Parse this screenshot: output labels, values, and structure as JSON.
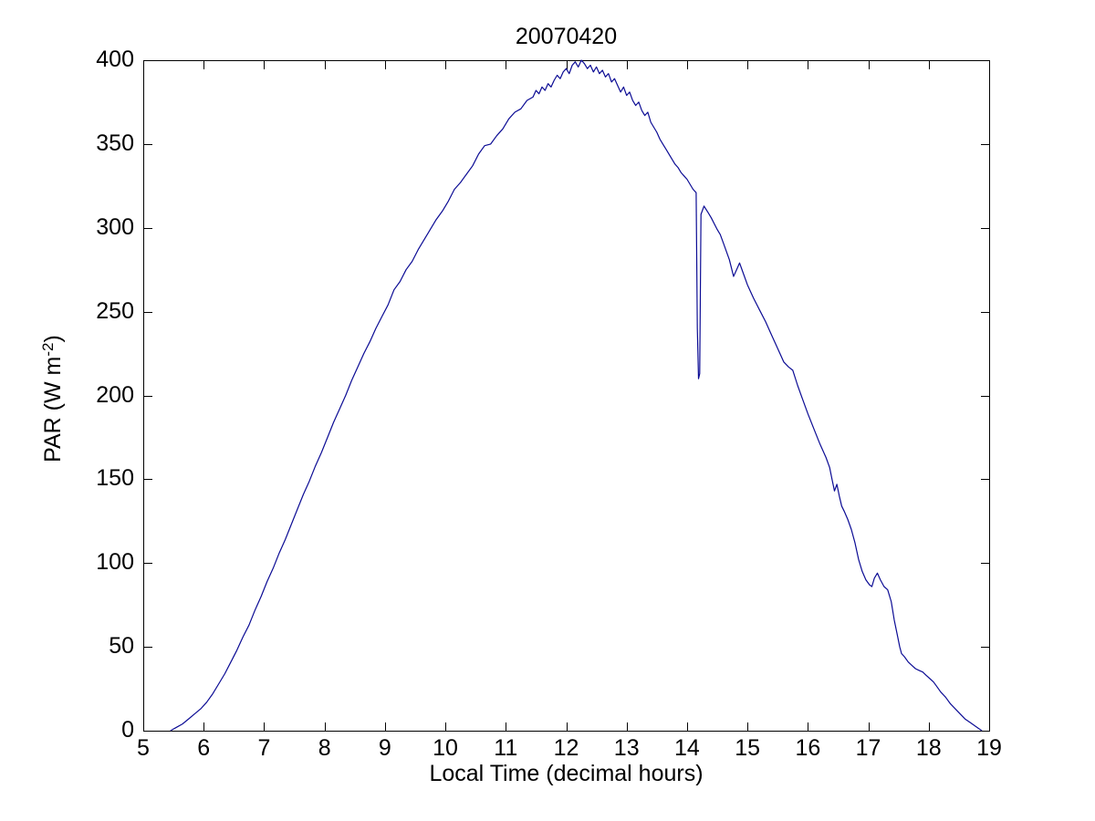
{
  "chart_data": {
    "type": "line",
    "title": "20070420",
    "xlabel": "Local Time (decimal hours)",
    "ylabel": {
      "prefix": "PAR (W m",
      "sup": "-2",
      "suffix": ")"
    },
    "xlim": [
      5,
      19
    ],
    "ylim": [
      0,
      400
    ],
    "xticks": [
      5,
      6,
      7,
      8,
      9,
      10,
      11,
      12,
      13,
      14,
      15,
      16,
      17,
      18,
      19
    ],
    "yticks": [
      0,
      50,
      100,
      150,
      200,
      250,
      300,
      350,
      400
    ],
    "grid": false,
    "legend": null,
    "line_color": "#0b0b94",
    "axis_color": "#000000",
    "background_color": "#ffffff",
    "series": [
      {
        "name": "PAR",
        "x": [
          5.45,
          5.55,
          5.65,
          5.75,
          5.85,
          5.95,
          6.05,
          6.15,
          6.25,
          6.35,
          6.45,
          6.55,
          6.65,
          6.75,
          6.85,
          6.95,
          7.05,
          7.15,
          7.25,
          7.35,
          7.45,
          7.55,
          7.65,
          7.75,
          7.85,
          7.95,
          8.05,
          8.15,
          8.25,
          8.35,
          8.45,
          8.55,
          8.65,
          8.75,
          8.85,
          8.95,
          9.05,
          9.15,
          9.25,
          9.35,
          9.45,
          9.55,
          9.65,
          9.75,
          9.85,
          9.95,
          10.05,
          10.15,
          10.25,
          10.35,
          10.45,
          10.55,
          10.65,
          10.75,
          10.85,
          10.95,
          11.05,
          11.15,
          11.25,
          11.35,
          11.45,
          11.5,
          11.55,
          11.6,
          11.65,
          11.7,
          11.75,
          11.8,
          11.85,
          11.9,
          11.95,
          12.0,
          12.05,
          12.1,
          12.15,
          12.2,
          12.25,
          12.3,
          12.35,
          12.4,
          12.45,
          12.5,
          12.55,
          12.6,
          12.65,
          12.7,
          12.75,
          12.8,
          12.85,
          12.9,
          12.95,
          13.0,
          13.05,
          13.1,
          13.15,
          13.2,
          13.25,
          13.3,
          13.35,
          13.4,
          13.45,
          13.5,
          13.55,
          13.6,
          13.65,
          13.7,
          13.75,
          13.8,
          13.85,
          13.9,
          13.95,
          14.0,
          14.05,
          14.1,
          14.15,
          14.17,
          14.19,
          14.21,
          14.23,
          14.28,
          14.35,
          14.4,
          14.5,
          14.55,
          14.6,
          14.7,
          14.77,
          14.82,
          14.87,
          14.92,
          15.0,
          15.1,
          15.2,
          15.3,
          15.4,
          15.5,
          15.6,
          15.68,
          15.75,
          15.83,
          15.9,
          16.0,
          16.1,
          16.2,
          16.3,
          16.36,
          16.4,
          16.44,
          16.48,
          16.52,
          16.56,
          16.6,
          16.66,
          16.72,
          16.78,
          16.84,
          16.9,
          16.96,
          17.02,
          17.06,
          17.1,
          17.15,
          17.2,
          17.26,
          17.32,
          17.38,
          17.43,
          17.48,
          17.52,
          17.55,
          17.6,
          17.66,
          17.72,
          17.78,
          17.84,
          17.9,
          17.96,
          18.02,
          18.08,
          18.14,
          18.2,
          18.28,
          18.36,
          18.44,
          18.52,
          18.6,
          18.68,
          18.76,
          18.84,
          18.88
        ],
        "y": [
          0,
          2,
          4,
          7,
          10,
          13,
          17,
          22,
          28,
          34,
          41,
          48,
          56,
          63,
          72,
          80,
          89,
          97,
          106,
          114,
          123,
          132,
          141,
          149,
          158,
          166,
          175,
          184,
          192,
          200,
          209,
          217,
          225,
          232,
          240,
          247,
          254,
          263,
          268,
          275,
          280,
          287,
          293,
          299,
          305,
          310,
          316,
          323,
          327,
          332,
          337,
          344,
          349,
          350,
          355,
          359,
          365,
          369,
          371,
          376,
          378,
          382,
          380,
          384,
          382,
          386,
          384,
          388,
          391,
          389,
          393,
          395,
          392,
          397,
          399,
          396,
          400,
          398,
          395,
          397,
          393,
          396,
          392,
          394,
          390,
          392,
          387,
          389,
          385,
          381,
          384,
          379,
          381,
          376,
          373,
          375,
          370,
          367,
          369,
          363,
          360,
          357,
          353,
          350,
          347,
          344,
          341,
          338,
          336,
          333,
          331,
          329,
          326,
          323,
          321,
          240,
          210,
          213,
          308,
          313,
          309,
          306,
          299,
          296,
          291,
          281,
          271,
          275,
          279,
          274,
          266,
          258,
          251,
          244,
          236,
          228,
          220,
          217,
          215,
          206,
          199,
          189,
          180,
          171,
          163,
          157,
          150,
          143,
          147,
          140,
          134,
          131,
          126,
          120,
          112,
          102,
          95,
          90,
          87,
          86,
          91,
          94,
          90,
          86,
          84,
          77,
          66,
          57,
          50,
          46,
          44,
          41,
          39,
          37,
          36,
          35,
          33,
          31,
          29,
          26,
          23,
          20,
          16,
          13,
          10,
          7,
          5,
          3,
          1,
          0
        ]
      }
    ]
  }
}
